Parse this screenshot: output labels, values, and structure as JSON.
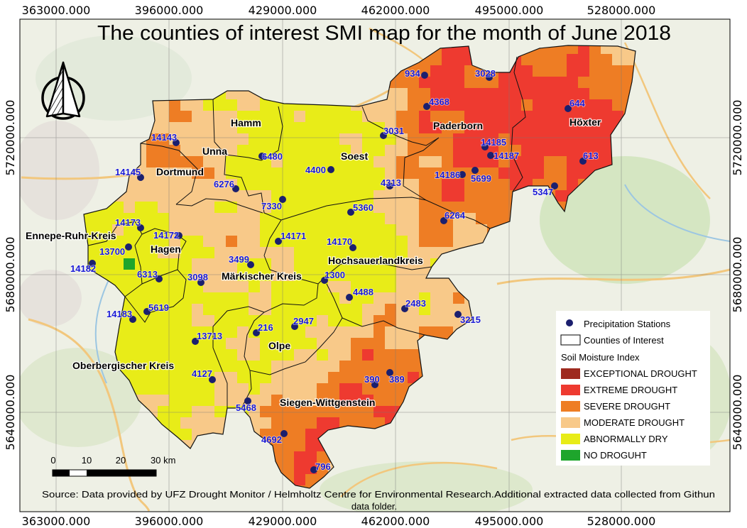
{
  "title": "The counties of interest SMI map for the month of June 2018",
  "source": {
    "line1": "Source: Data provided by UFZ Drought Monitor / Helmholtz Centre for Environmental Research.Additional extracted data collected from Githun",
    "line2": "data folder."
  },
  "grid": {
    "x_labels": [
      "363000.000",
      "396000.000",
      "429000.000",
      "462000.000",
      "495000.000",
      "528000.000"
    ],
    "y_labels": [
      "5720000.000",
      "5680000.000",
      "5640000.000"
    ]
  },
  "counties": [
    "Hamm",
    "Unna",
    "Dortmund",
    "Soest",
    "Paderborn",
    "Höxter",
    "Ennepe-Ruhr-Kreis",
    "Hagen",
    "Märkischer Kreis",
    "Hochsauerlandkreis",
    "Olpe",
    "Oberbergischer Kreis",
    "Siegen-Wittgenstein"
  ],
  "stations": [
    "934",
    "3028",
    "4368",
    "644",
    "3031",
    "14143",
    "6480",
    "4400",
    "14185",
    "14187",
    "613",
    "14145",
    "14186",
    "5699",
    "5347",
    "6276",
    "4313",
    "7330",
    "5360",
    "6264",
    "14173",
    "14172",
    "14171",
    "14170",
    "13700",
    "14182",
    "3499",
    "6313",
    "3098",
    "1300",
    "4488",
    "2483",
    "5619",
    "14183",
    "3215",
    "216",
    "2947",
    "13713",
    "390",
    "389",
    "4127",
    "5468",
    "4692",
    "796"
  ],
  "legend": {
    "stations_label": "Precipitation Stations",
    "counties_label": "Counties of Interest",
    "smi_title": "Soil Moisture Index",
    "classes": [
      {
        "label": "EXCEPTIONAL DROUGHT",
        "color": "#9e2a1f"
      },
      {
        "label": "EXTREME DROUGHT",
        "color": "#ee3a30"
      },
      {
        "label": "SEVERE DROUGHT",
        "color": "#ee7d24"
      },
      {
        "label": "MODERATE DROUGHT",
        "color": "#f8c989"
      },
      {
        "label": "ABNORMALLY DRY",
        "color": "#e8ec18"
      },
      {
        "label": "NO DROGUHT",
        "color": "#1ea52c"
      }
    ]
  },
  "scale_bar": {
    "ticks": [
      "0",
      "10",
      "20",
      "30 km"
    ]
  }
}
